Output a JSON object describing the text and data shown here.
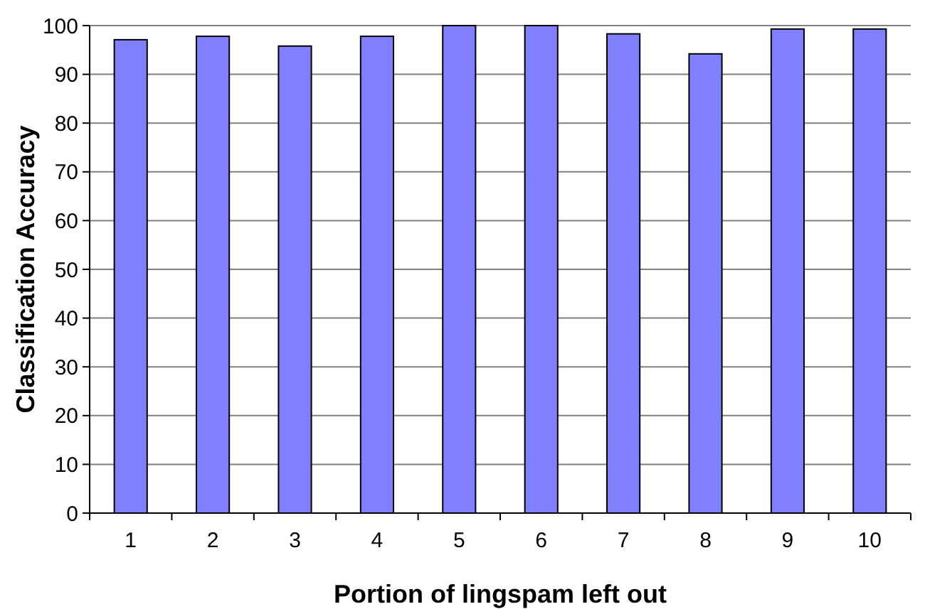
{
  "chart_data": {
    "type": "bar",
    "xlabel": "Portion of lingspam left out",
    "ylabel": "Classification Accuracy",
    "categories": [
      "1",
      "2",
      "3",
      "4",
      "5",
      "6",
      "7",
      "8",
      "9",
      "10"
    ],
    "values": [
      97.1,
      97.8,
      95.8,
      97.8,
      100,
      100,
      98.3,
      94.2,
      99.3,
      99.3
    ],
    "color": "#8080ff",
    "ylim": [
      0,
      100
    ],
    "yticks": [
      0,
      10,
      20,
      30,
      40,
      50,
      60,
      70,
      80,
      90,
      100
    ],
    "grid": "y"
  }
}
